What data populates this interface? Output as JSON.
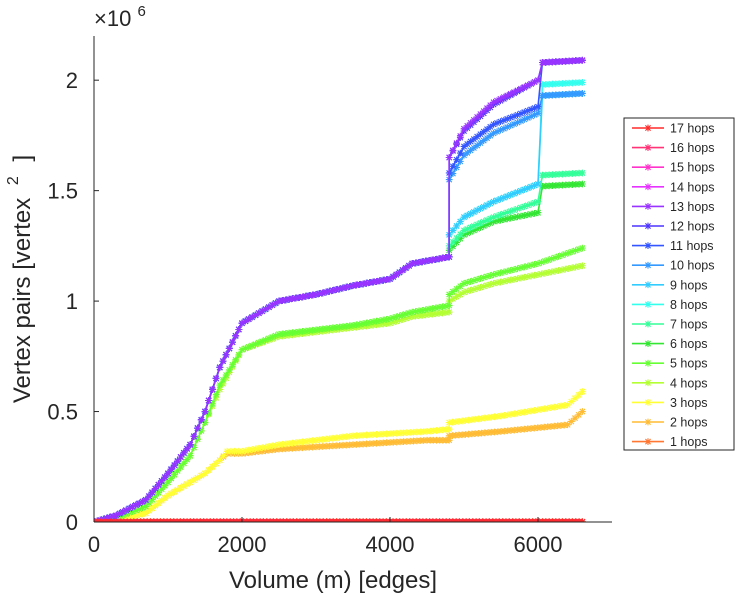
{
  "chart_data": {
    "type": "line",
    "title": "",
    "xlabel": "Volume (m) [edges]",
    "ylabel": "Vertex pairs [vertex",
    "ylabel_superscript": "2",
    "ylabel_close": "]",
    "y_exponent_label": "×10",
    "y_exponent_power": "6",
    "xlim": [
      0,
      7000
    ],
    "ylim": [
      0,
      2.2
    ],
    "x_ticks": [
      0,
      2000,
      4000,
      6000
    ],
    "x_tick_labels": [
      "0",
      "2000",
      "4000",
      "6000"
    ],
    "y_ticks": [
      0,
      0.5,
      1,
      1.5,
      2
    ],
    "y_tick_labels": [
      "0",
      "0.5",
      "1",
      "1.5",
      "2"
    ],
    "grid": false,
    "legend_position": "right",
    "series": [
      {
        "name": "17 hops",
        "color": "#ff2a2a",
        "x": [
          0,
          6600
        ],
        "y": [
          0,
          0
        ]
      },
      {
        "name": "16 hops",
        "color": "#ff3377",
        "x": [
          0,
          6600
        ],
        "y": [
          0,
          0
        ]
      },
      {
        "name": "15 hops",
        "color": "#ff33cc",
        "x": [
          0,
          6600
        ],
        "y": [
          0,
          0
        ]
      },
      {
        "name": "14 hops",
        "color": "#e633ff",
        "x": [
          0,
          6600
        ],
        "y": [
          0,
          0
        ]
      },
      {
        "name": "13 hops",
        "color": "#9933ff",
        "x": [
          0,
          300,
          700,
          1000,
          1300,
          1500,
          1700,
          2000,
          2500,
          3000,
          3500,
          4000,
          4300,
          4800,
          4800,
          5000,
          5400,
          6000,
          6060,
          6600
        ],
        "y": [
          0,
          0.03,
          0.1,
          0.22,
          0.35,
          0.5,
          0.7,
          0.9,
          1.0,
          1.03,
          1.07,
          1.1,
          1.17,
          1.2,
          1.65,
          1.78,
          1.9,
          2.0,
          2.08,
          2.09
        ]
      },
      {
        "name": "12 hops",
        "color": "#4d33ff",
        "x": [
          0,
          300,
          700,
          1000,
          1300,
          1500,
          1700,
          2000,
          2500,
          3000,
          3500,
          4000,
          4300,
          4800,
          4800,
          5000,
          5400,
          6000,
          6060,
          6600
        ],
        "y": [
          0,
          0.03,
          0.1,
          0.22,
          0.35,
          0.5,
          0.7,
          0.9,
          1.0,
          1.03,
          1.07,
          1.1,
          1.17,
          1.2,
          1.65,
          1.77,
          1.89,
          2.0,
          2.08,
          2.09
        ]
      },
      {
        "name": "11 hops",
        "color": "#3355ff",
        "x": [
          0,
          300,
          700,
          1000,
          1300,
          1500,
          1700,
          2000,
          2500,
          3000,
          3500,
          4000,
          4300,
          4800,
          4800,
          5000,
          5400,
          6000,
          6060,
          6600
        ],
        "y": [
          0,
          0.03,
          0.1,
          0.22,
          0.35,
          0.5,
          0.7,
          0.9,
          1.0,
          1.03,
          1.07,
          1.1,
          1.17,
          1.2,
          1.58,
          1.7,
          1.8,
          1.88,
          2.08,
          2.09
        ]
      },
      {
        "name": "10 hops",
        "color": "#3399ff",
        "x": [
          0,
          300,
          700,
          1000,
          1300,
          1500,
          1700,
          2000,
          2500,
          3000,
          3500,
          4000,
          4300,
          4800,
          4800,
          5000,
          5400,
          6000,
          6060,
          6600
        ],
        "y": [
          0,
          0.03,
          0.1,
          0.22,
          0.35,
          0.5,
          0.7,
          0.9,
          1.0,
          1.03,
          1.07,
          1.1,
          1.17,
          1.2,
          1.55,
          1.66,
          1.76,
          1.85,
          1.93,
          1.94
        ]
      },
      {
        "name": "9 hops",
        "color": "#33ccff",
        "x": [
          0,
          300,
          700,
          1000,
          1300,
          1500,
          1700,
          2000,
          2500,
          3000,
          3500,
          4000,
          4300,
          4800,
          4800,
          5000,
          5400,
          6000,
          6060,
          6600
        ],
        "y": [
          0,
          0.03,
          0.1,
          0.22,
          0.35,
          0.5,
          0.7,
          0.9,
          1.0,
          1.03,
          1.07,
          1.1,
          1.17,
          1.2,
          1.3,
          1.38,
          1.45,
          1.53,
          1.93,
          1.94
        ]
      },
      {
        "name": "8 hops",
        "color": "#33ffee",
        "x": [
          0,
          300,
          700,
          1000,
          1300,
          1500,
          1700,
          2000,
          2500,
          3000,
          3500,
          4000,
          4300,
          4800,
          4800,
          5000,
          5400,
          6000,
          6060,
          6600
        ],
        "y": [
          0,
          0.03,
          0.1,
          0.22,
          0.35,
          0.5,
          0.7,
          0.9,
          1.0,
          1.03,
          1.07,
          1.1,
          1.17,
          1.2,
          1.3,
          1.38,
          1.45,
          1.53,
          1.98,
          1.99
        ]
      },
      {
        "name": "7 hops",
        "color": "#33ff99",
        "x": [
          0,
          300,
          700,
          1000,
          1300,
          1500,
          1700,
          2000,
          2500,
          3000,
          3500,
          4000,
          4300,
          4800,
          4800,
          5000,
          5400,
          6000,
          6060,
          6600
        ],
        "y": [
          0,
          0.03,
          0.1,
          0.22,
          0.35,
          0.5,
          0.7,
          0.9,
          1.0,
          1.03,
          1.07,
          1.1,
          1.17,
          1.2,
          1.25,
          1.32,
          1.38,
          1.45,
          1.57,
          1.58
        ]
      },
      {
        "name": "6 hops",
        "color": "#33e633",
        "x": [
          0,
          300,
          700,
          1000,
          1300,
          1500,
          1700,
          2000,
          2500,
          3000,
          3500,
          4000,
          4300,
          4800,
          4800,
          5000,
          5400,
          6000,
          6060,
          6600
        ],
        "y": [
          0,
          0.03,
          0.1,
          0.22,
          0.35,
          0.5,
          0.7,
          0.9,
          1.0,
          1.03,
          1.07,
          1.1,
          1.17,
          1.2,
          1.23,
          1.3,
          1.36,
          1.4,
          1.52,
          1.53
        ]
      },
      {
        "name": "5 hops",
        "color": "#66ff33",
        "x": [
          0,
          300,
          700,
          1000,
          1300,
          1500,
          1700,
          2000,
          2500,
          3000,
          3500,
          4000,
          4300,
          4800,
          4800,
          5000,
          5400,
          6000,
          6600
        ],
        "y": [
          0,
          0.02,
          0.07,
          0.18,
          0.3,
          0.45,
          0.62,
          0.78,
          0.85,
          0.87,
          0.89,
          0.92,
          0.95,
          0.98,
          1.03,
          1.08,
          1.12,
          1.17,
          1.24
        ]
      },
      {
        "name": "4 hops",
        "color": "#b3ff33",
        "x": [
          0,
          300,
          700,
          1000,
          1300,
          1500,
          1700,
          2000,
          2500,
          3000,
          3500,
          4000,
          4300,
          4800,
          4800,
          5000,
          5400,
          6000,
          6600
        ],
        "y": [
          0,
          0.02,
          0.07,
          0.18,
          0.3,
          0.45,
          0.6,
          0.78,
          0.84,
          0.86,
          0.88,
          0.9,
          0.93,
          0.95,
          1.0,
          1.04,
          1.08,
          1.12,
          1.16
        ]
      },
      {
        "name": "3 hops",
        "color": "#ffff33",
        "x": [
          0,
          300,
          700,
          1000,
          1300,
          1500,
          1700,
          1800,
          2000,
          2500,
          3000,
          3500,
          4000,
          4500,
          4800,
          4800,
          5500,
          6400,
          6600
        ],
        "y": [
          0,
          0.01,
          0.04,
          0.12,
          0.18,
          0.22,
          0.28,
          0.32,
          0.32,
          0.35,
          0.37,
          0.39,
          0.4,
          0.41,
          0.42,
          0.45,
          0.48,
          0.53,
          0.59
        ]
      },
      {
        "name": "2 hops",
        "color": "#ffbb33",
        "x": [
          0,
          300,
          700,
          1000,
          1300,
          1500,
          1700,
          1800,
          2000,
          2500,
          3000,
          3500,
          4000,
          4500,
          4800,
          4800,
          5500,
          6400,
          6600
        ],
        "y": [
          0,
          0.01,
          0.04,
          0.12,
          0.18,
          0.22,
          0.28,
          0.31,
          0.31,
          0.33,
          0.34,
          0.35,
          0.36,
          0.37,
          0.37,
          0.39,
          0.41,
          0.44,
          0.5
        ]
      },
      {
        "name": "1 hops",
        "color": "#ff7733",
        "x": [
          0,
          6600
        ],
        "y": [
          0.002,
          0.002
        ]
      }
    ]
  }
}
